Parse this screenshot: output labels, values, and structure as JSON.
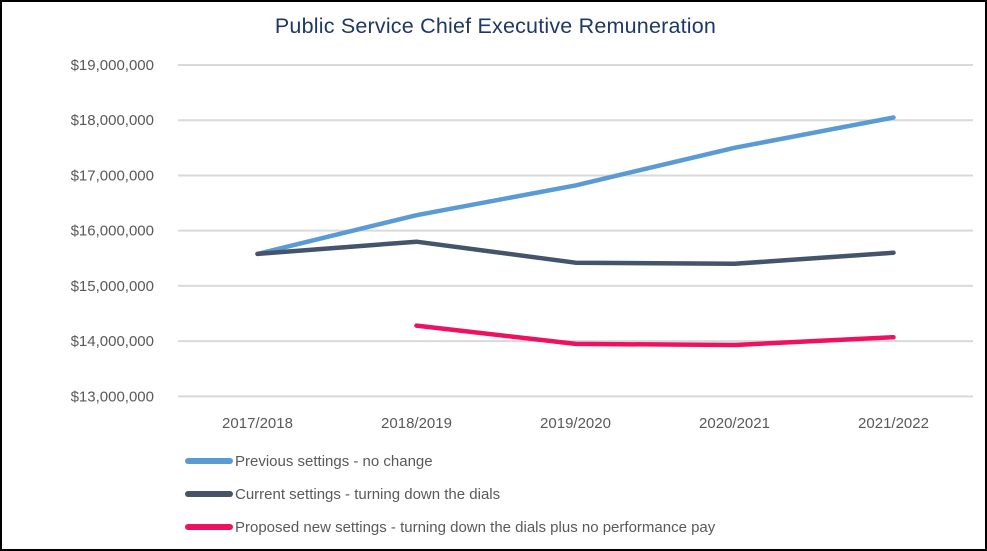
{
  "colors": {
    "background": "#FFFFFF",
    "border": "#000000",
    "title_text": "#1F3864",
    "axis_text": "#595959",
    "gridline": "#D9D9D9"
  },
  "chart_data": {
    "type": "line",
    "title": "Public Service Chief Executive Remuneration",
    "xlabel": "",
    "ylabel": "",
    "categories": [
      "2017/2018",
      "2018/2019",
      "2019/2020",
      "2020/2021",
      "2021/2022"
    ],
    "series": [
      {
        "name": "Previous settings - no change",
        "color": "#5B9BD5",
        "values": [
          15580000,
          16280000,
          16820000,
          17500000,
          18050000
        ]
      },
      {
        "name": "Current settings - turning down the dials",
        "color": "#44546A",
        "values": [
          15580000,
          15800000,
          15420000,
          15400000,
          15600000
        ]
      },
      {
        "name": "Proposed new settings - turning down the dials plus no performance pay",
        "color": "#EE1160",
        "values": [
          null,
          14280000,
          13950000,
          13930000,
          14070000
        ]
      }
    ],
    "ylim": [
      13000000,
      19000000
    ],
    "y_tick_interval": 1000000,
    "y_ticks": [
      "$19,000,000",
      "$18,000,000",
      "$17,000,000",
      "$16,000,000",
      "$15,000,000",
      "$14,000,000",
      "$13,000,000"
    ],
    "y_tick_values": [
      19000000,
      18000000,
      17000000,
      16000000,
      15000000,
      14000000,
      13000000
    ],
    "grid": "horizontal",
    "legend_position": "bottom-left"
  }
}
